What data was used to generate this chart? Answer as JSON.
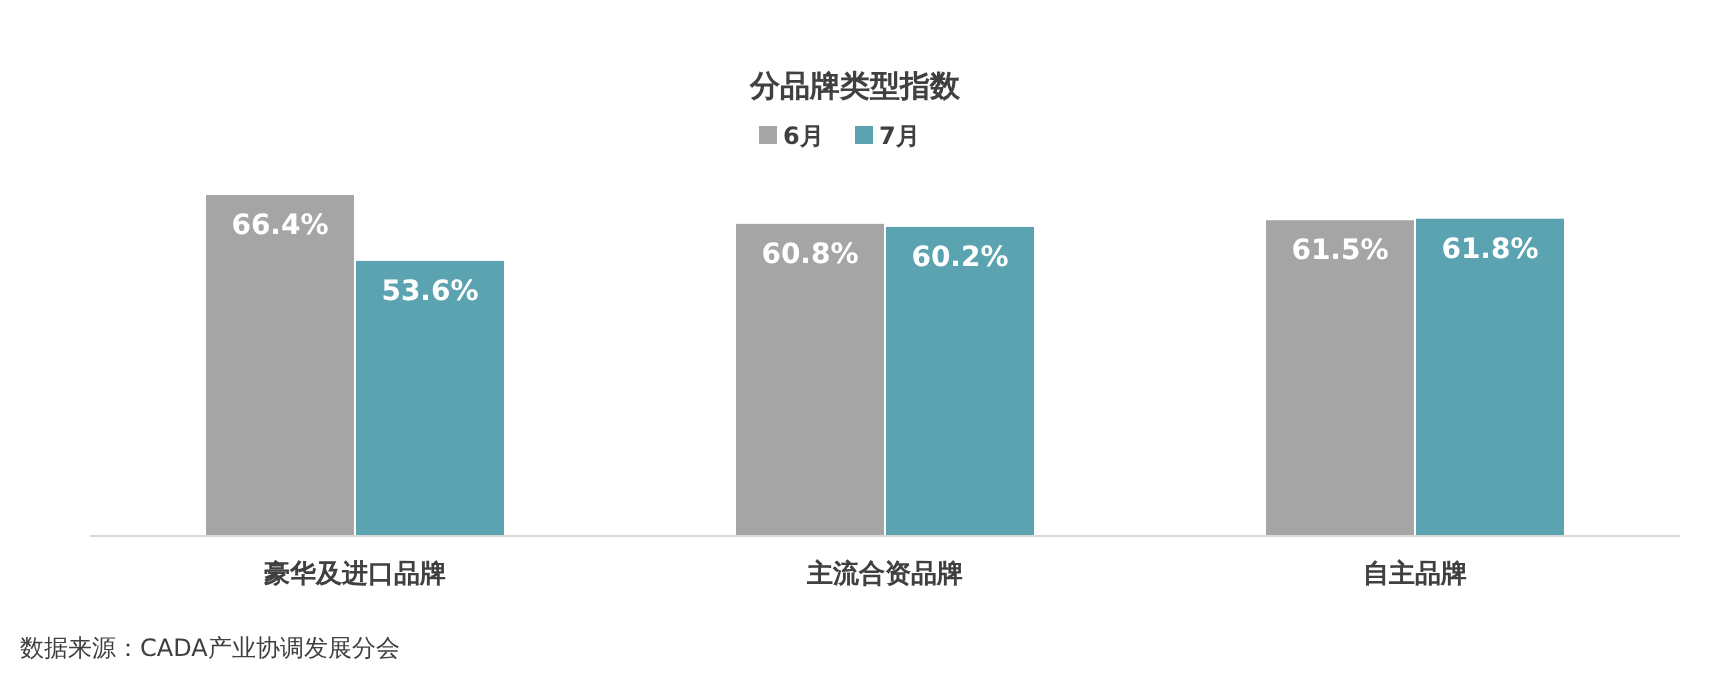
{
  "chart_data": {
    "type": "bar",
    "title": "分品牌类型指数",
    "categories": [
      "豪华及进口品牌",
      "主流合资品牌",
      "自主品牌"
    ],
    "series": [
      {
        "name": "6月",
        "color": "#a5a5a5",
        "values": [
          66.4,
          60.8,
          61.5
        ],
        "value_labels": [
          "66.4%",
          "60.8%",
          "61.5%"
        ]
      },
      {
        "name": "7月",
        "color": "#5ba3b0",
        "values": [
          53.6,
          60.2,
          61.8
        ],
        "value_labels": [
          "53.6%",
          "60.2%",
          "61.8%"
        ]
      }
    ],
    "legend": "top",
    "annotations": [
      "数据来源：CADA产业协调发展分会"
    ]
  }
}
